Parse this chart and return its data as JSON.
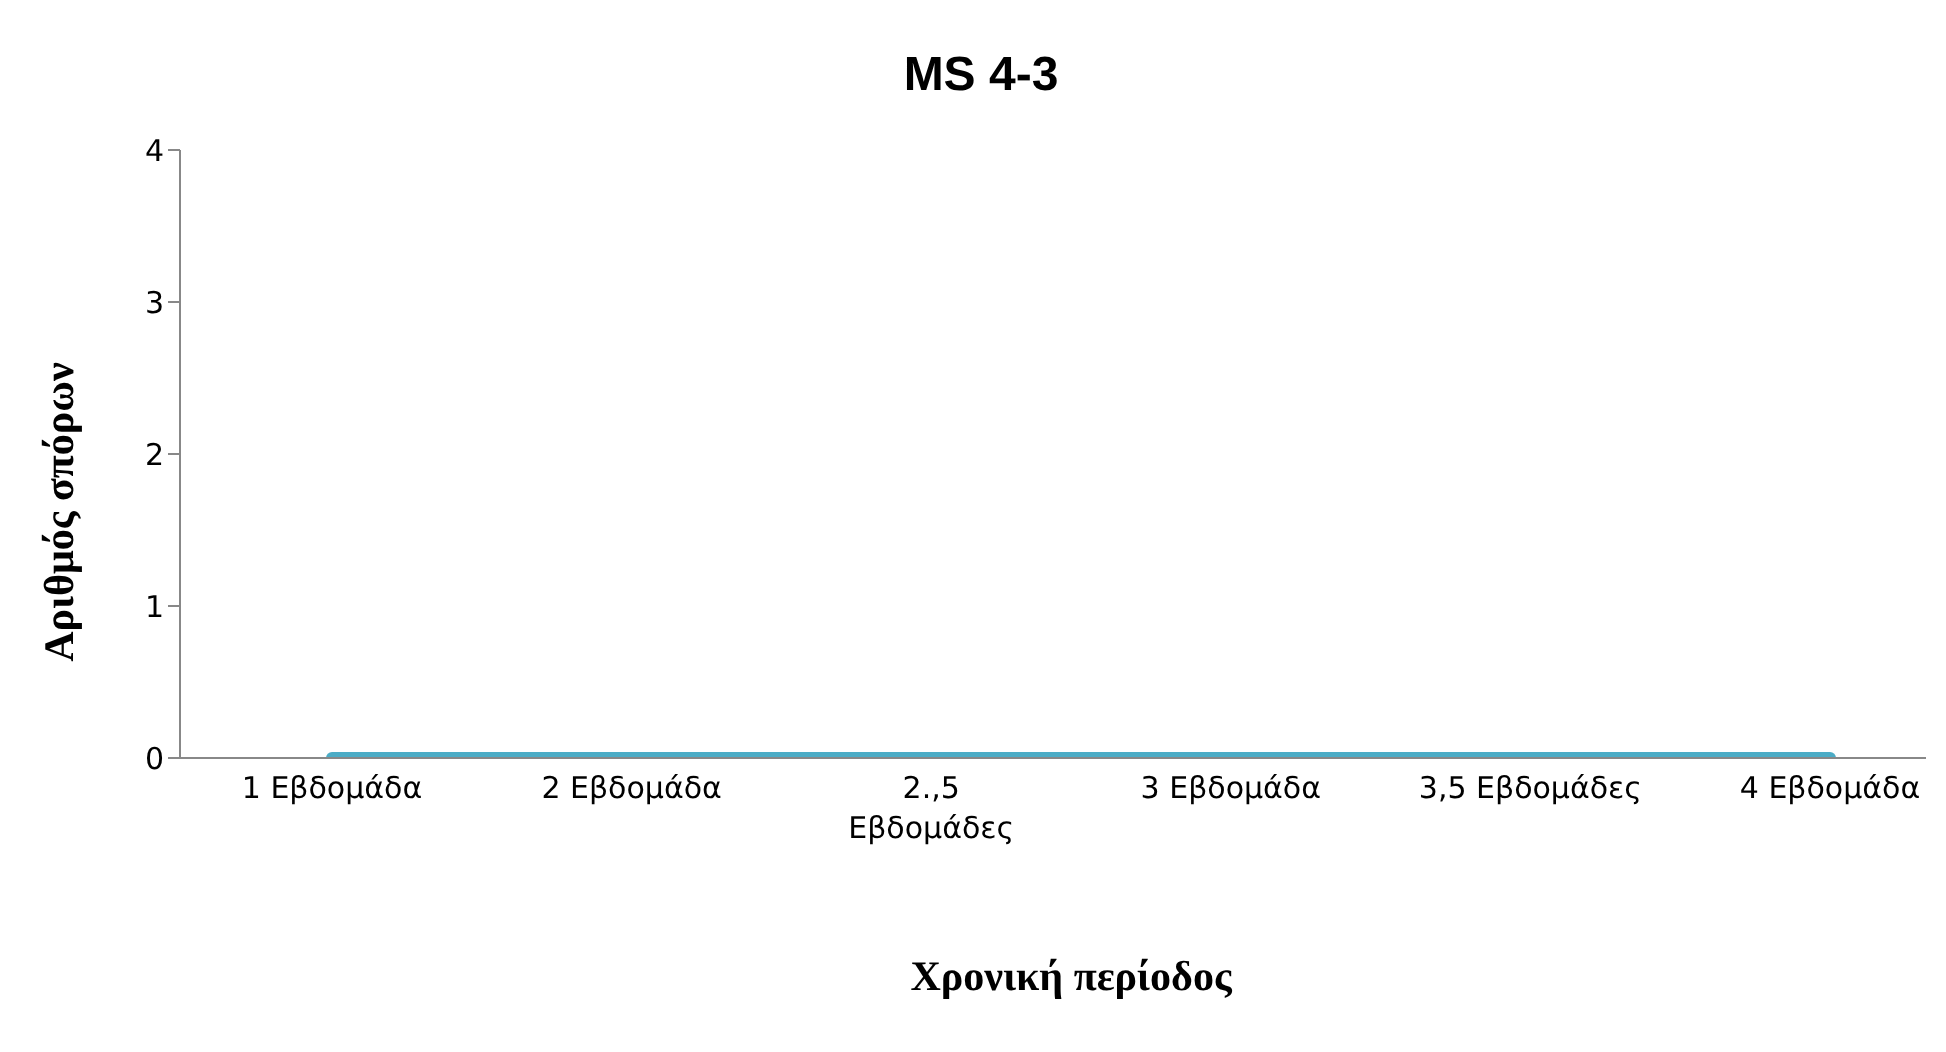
{
  "chart_data": {
    "type": "line",
    "title": "MS 4-3",
    "xlabel": "Χρονική περίοδος",
    "ylabel": "Αριθμός σπόρων",
    "categories": [
      "1 Εβδομάδα",
      "2 Εβδομάδα",
      "2.,5 Εβδομάδες",
      "3 Εβδομάδα",
      "3,5 Εβδομάδες",
      "4 Εβδομάδα"
    ],
    "series": [
      {
        "color": "#4bacc6",
        "values": [
          0,
          0,
          0,
          0,
          0,
          0
        ]
      }
    ],
    "ylim": [
      0,
      4
    ],
    "yticks": [
      0,
      1,
      2,
      3,
      4
    ],
    "grid": false,
    "legend": false,
    "marker": "none",
    "line_style": "solid"
  }
}
